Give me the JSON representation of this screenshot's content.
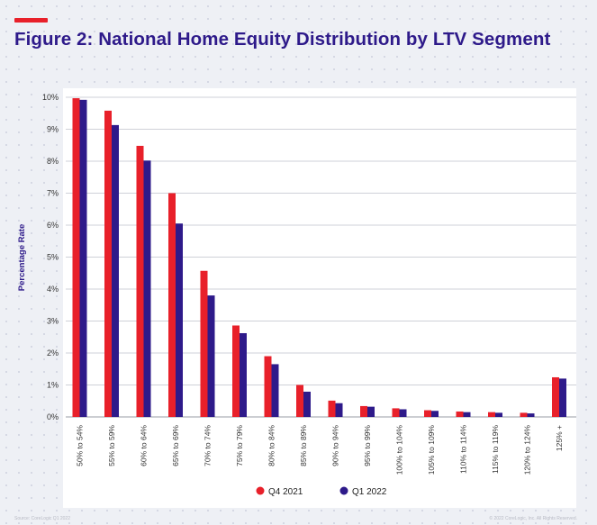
{
  "title": "Figure 2: National Home Equity Distribution by LTV Segment",
  "footer_left": "Source: CoreLogic Q1 2022",
  "footer_right": "© 2022 CoreLogic, Inc. All Rights Reserved.",
  "colors": {
    "accent": "#e8202a",
    "series_1": "#e8202a",
    "series_2": "#2e1a8a",
    "title": "#2e1a8a"
  },
  "chart_data": {
    "type": "bar",
    "title": "Figure 2: National Home Equity Distribution by LTV Segment",
    "xlabel": "",
    "ylabel": "Percentage Rate",
    "ylim": [
      0,
      10
    ],
    "y_ticks": [
      "0%",
      "1%",
      "2%",
      "3%",
      "4%",
      "5%",
      "6%",
      "7%",
      "8%",
      "9%",
      "10%"
    ],
    "categories": [
      "50% to 54%",
      "55% to 59%",
      "60% to 64%",
      "65% to 69%",
      "70% to 74%",
      "75% to 79%",
      "80% to 84%",
      "85% to 89%",
      "90% to 94%",
      "95% to 99%",
      "100% to 104%",
      "105% to 109%",
      "110% to 114%",
      "115% to 119%",
      "120% to 124%",
      "125% +"
    ],
    "series": [
      {
        "name": "Q4 2021",
        "values": [
          9.97,
          9.58,
          8.48,
          7.0,
          4.57,
          2.86,
          1.9,
          1.0,
          0.51,
          0.34,
          0.27,
          0.21,
          0.17,
          0.15,
          0.13,
          1.24
        ]
      },
      {
        "name": "Q1 2022",
        "values": [
          9.92,
          9.13,
          8.02,
          6.05,
          3.8,
          2.62,
          1.65,
          0.79,
          0.43,
          0.32,
          0.24,
          0.19,
          0.15,
          0.13,
          0.11,
          1.2
        ]
      }
    ],
    "grid": true,
    "legend_position": "bottom-center"
  }
}
